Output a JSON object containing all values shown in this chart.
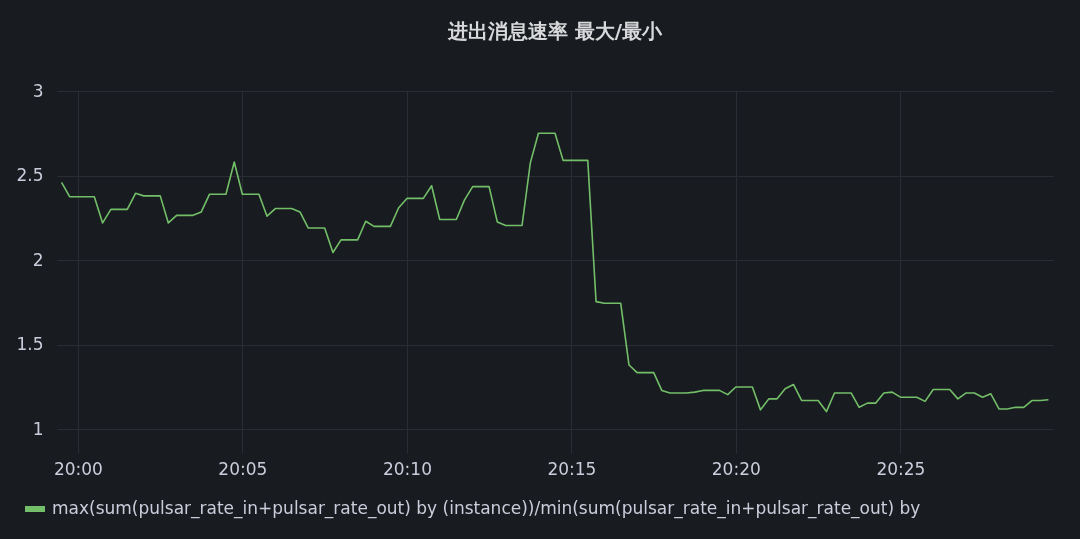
{
  "chart_data": {
    "type": "line",
    "title": "进出消息速率 最大/最小",
    "x": [
      19.9917,
      19.9958,
      20.0083,
      20.0125,
      20.0167,
      20.025,
      20.0292,
      20.0333,
      20.0417,
      20.0458,
      20.05,
      20.0583,
      20.0625,
      20.0667,
      20.075,
      20.0792,
      20.0833,
      20.0917,
      20.0958,
      20.1,
      20.1083,
      20.1125,
      20.1167,
      20.125,
      20.1292,
      20.1333,
      20.1417,
      20.1458,
      20.15,
      20.1583,
      20.1625,
      20.1667,
      20.175,
      20.1792,
      20.1833,
      20.1917,
      20.1958,
      20.2,
      20.2083,
      20.2125,
      20.2167,
      20.225,
      20.2292,
      20.2333,
      20.2417,
      20.2458,
      20.2583,
      20.2625,
      20.2667,
      20.275,
      20.2792,
      20.2833,
      20.2917,
      20.2958,
      20.3,
      20.3083,
      20.3125,
      20.3167,
      20.325,
      20.3292,
      20.3333,
      20.3417,
      20.3458,
      20.35,
      20.3542,
      20.3583,
      20.3625,
      20.3667,
      20.375,
      20.3792,
      20.3833,
      20.3917,
      20.3958,
      20.4,
      20.4042,
      20.4083,
      20.4125,
      20.4167,
      20.425,
      20.4292,
      20.4333,
      20.4417,
      20.4458,
      20.45,
      20.4542,
      20.4583,
      20.4625,
      20.4667,
      20.4708,
      20.475,
      20.4792,
      20.4833,
      20.4875,
      20.4917
    ],
    "series": [
      {
        "name": "max(sum(pulsar_rate_in+pulsar_rate_out) by (instance))/min(sum(pulsar_rate_in+pulsar_rate_out) by",
        "color": "#73bf69",
        "values": [
          2.46,
          2.375,
          2.375,
          2.22,
          2.3,
          2.3,
          2.395,
          2.38,
          2.38,
          2.22,
          2.265,
          2.265,
          2.285,
          2.39,
          2.39,
          2.58,
          2.39,
          2.39,
          2.26,
          2.305,
          2.305,
          2.285,
          2.19,
          2.19,
          2.045,
          2.12,
          2.12,
          2.23,
          2.2,
          2.2,
          2.31,
          2.365,
          2.365,
          2.44,
          2.24,
          2.24,
          2.355,
          2.435,
          2.435,
          2.225,
          2.205,
          2.205,
          2.575,
          2.75,
          2.75,
          2.59,
          2.59,
          1.755,
          1.745,
          1.745,
          1.38,
          1.335,
          1.335,
          1.23,
          1.215,
          1.215,
          1.22,
          1.23,
          1.23,
          1.205,
          1.25,
          1.25,
          1.115,
          1.18,
          1.18,
          1.24,
          1.265,
          1.17,
          1.17,
          1.105,
          1.215,
          1.215,
          1.13,
          1.155,
          1.155,
          1.215,
          1.22,
          1.19,
          1.19,
          1.165,
          1.235,
          1.235,
          1.18,
          1.215,
          1.215,
          1.19,
          1.21,
          1.12,
          1.12,
          1.13,
          1.13,
          1.17,
          1.17,
          1.175
        ]
      }
    ],
    "xlim": [
      19.9894,
      20.494
    ],
    "xticks": [
      {
        "value": 20,
        "label": "20:00"
      },
      {
        "value": 20.0833,
        "label": "20:05"
      },
      {
        "value": 20.1667,
        "label": "20:10"
      },
      {
        "value": 20.25,
        "label": "20:15"
      },
      {
        "value": 20.3333,
        "label": "20:20"
      },
      {
        "value": 20.4167,
        "label": "20:25"
      }
    ],
    "ylim": [
      0.86,
      3
    ],
    "yticks": [
      1,
      1.5,
      2,
      2.5,
      3
    ],
    "grid": true,
    "legend": "bottom left",
    "marker": "none",
    "line_style": "solid"
  }
}
